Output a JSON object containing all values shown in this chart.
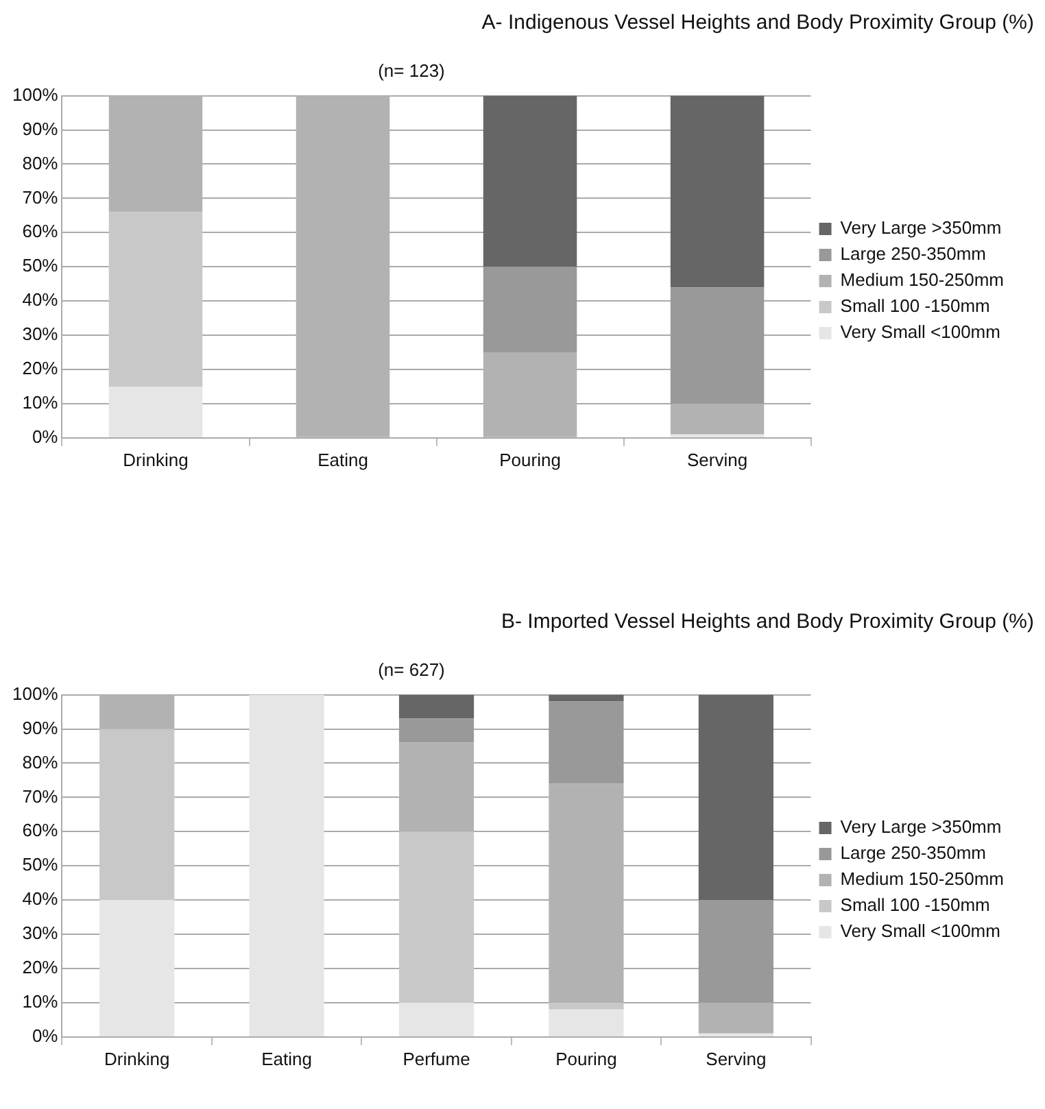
{
  "chart_data": [
    {
      "type": "bar",
      "title": "A- Indigenous Vessel Heights and Body Proximity Group (%)",
      "subtitle": "(n= 123)",
      "categories": [
        "Drinking",
        "Eating",
        "Pouring",
        "Serving"
      ],
      "stacked": true,
      "ylim": [
        0,
        100
      ],
      "yticks": [
        {
          "value": 0,
          "label": "0%"
        },
        {
          "value": 10,
          "label": "10%"
        },
        {
          "value": 20,
          "label": "20%"
        },
        {
          "value": 30,
          "label": "30%"
        },
        {
          "value": 40,
          "label": "40%"
        },
        {
          "value": 50,
          "label": "50%"
        },
        {
          "value": 60,
          "label": "60%"
        },
        {
          "value": 70,
          "label": "70%"
        },
        {
          "value": 80,
          "label": "80%"
        },
        {
          "value": 90,
          "label": "90%"
        },
        {
          "value": 100,
          "label": "100%"
        }
      ],
      "grid": "y",
      "legend": "right",
      "series": [
        {
          "name": "Very Small <100mm",
          "color": "#e6e6e6",
          "values": [
            15,
            0,
            0,
            1
          ]
        },
        {
          "name": "Small 100 -150mm",
          "color": "#c8c8c8",
          "values": [
            51,
            0,
            0,
            0
          ]
        },
        {
          "name": "Medium 150-250mm",
          "color": "#b2b2b2",
          "values": [
            34,
            100,
            25,
            9
          ]
        },
        {
          "name": "Large 250-350mm",
          "color": "#999999",
          "values": [
            0,
            0,
            25,
            34
          ]
        },
        {
          "name": "Very Large >350mm",
          "color": "#666666",
          "values": [
            0,
            0,
            50,
            56
          ]
        }
      ]
    },
    {
      "type": "bar",
      "title": "B- Imported Vessel Heights and Body Proximity Group (%)",
      "subtitle": "(n= 627)",
      "categories": [
        "Drinking",
        "Eating",
        "Perfume",
        "Pouring",
        "Serving"
      ],
      "stacked": true,
      "ylim": [
        0,
        100
      ],
      "yticks": [
        {
          "value": 0,
          "label": "0%"
        },
        {
          "value": 10,
          "label": "10%"
        },
        {
          "value": 20,
          "label": "20%"
        },
        {
          "value": 30,
          "label": "30%"
        },
        {
          "value": 40,
          "label": "40%"
        },
        {
          "value": 50,
          "label": "50%"
        },
        {
          "value": 60,
          "label": "60%"
        },
        {
          "value": 70,
          "label": "70%"
        },
        {
          "value": 80,
          "label": "80%"
        },
        {
          "value": 90,
          "label": "90%"
        },
        {
          "value": 100,
          "label": "100%"
        }
      ],
      "grid": "y",
      "legend": "right",
      "series": [
        {
          "name": "Very Small <100mm",
          "color": "#e6e6e6",
          "values": [
            40,
            100,
            10,
            8,
            1
          ]
        },
        {
          "name": "Small 100 -150mm",
          "color": "#c8c8c8",
          "values": [
            50,
            0,
            50,
            2,
            0
          ]
        },
        {
          "name": "Medium 150-250mm",
          "color": "#b2b2b2",
          "values": [
            10,
            0,
            26,
            64,
            9
          ]
        },
        {
          "name": "Large 250-350mm",
          "color": "#999999",
          "values": [
            0,
            0,
            7,
            24,
            30
          ]
        },
        {
          "name": "Very Large >350mm",
          "color": "#666666",
          "values": [
            0,
            0,
            7,
            2,
            60
          ]
        }
      ]
    }
  ]
}
